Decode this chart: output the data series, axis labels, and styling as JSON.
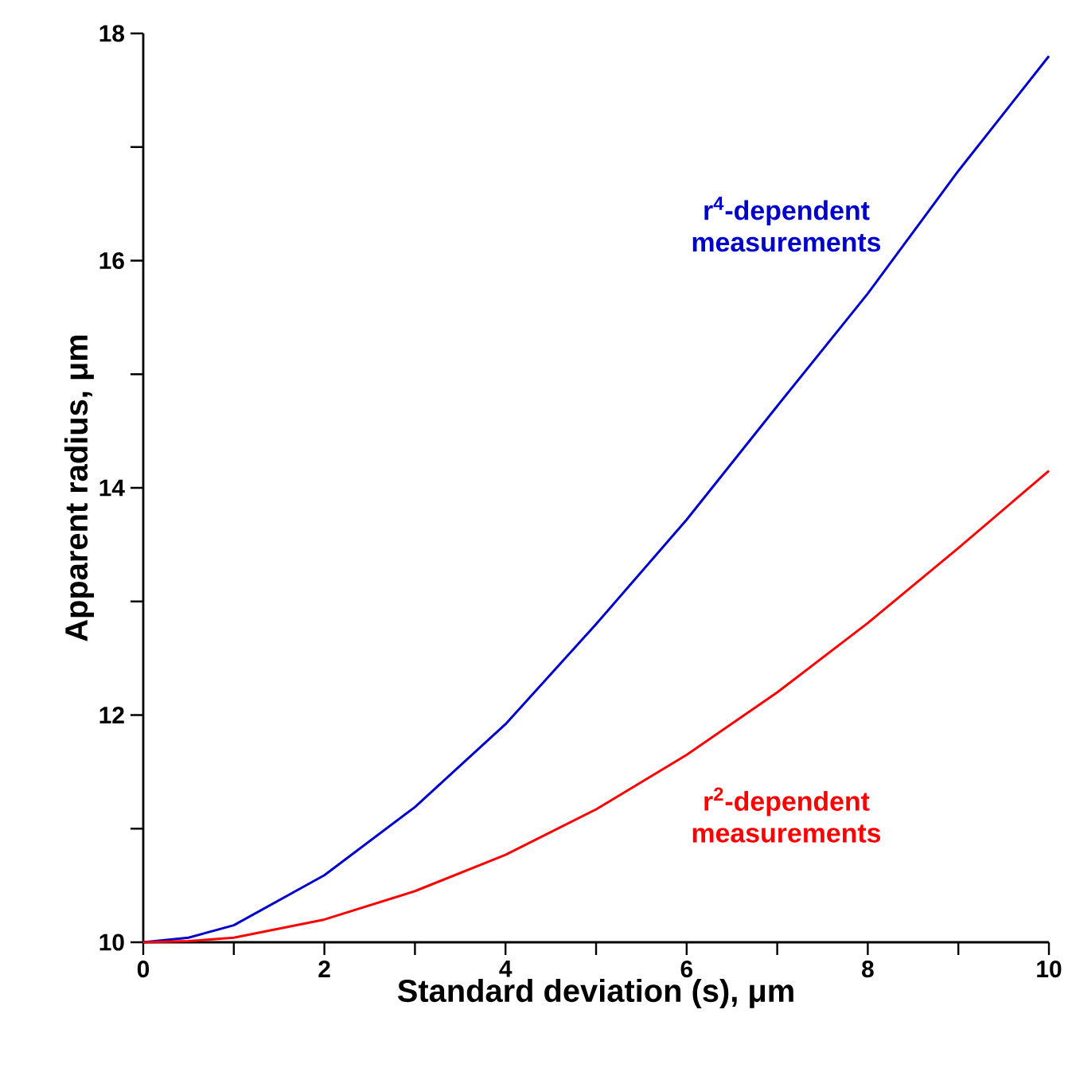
{
  "chart_data": {
    "type": "line",
    "xlabel": "Standard deviation (s), μm",
    "ylabel": "Apparent radius, μm",
    "x": [
      0,
      0.5,
      1,
      2,
      3,
      4,
      5,
      6,
      7,
      8,
      9,
      10
    ],
    "series": [
      {
        "color": "#0000cc",
        "values": [
          10,
          10.04,
          10.15,
          10.59,
          11.19,
          11.92,
          12.8,
          13.72,
          14.72,
          15.71,
          16.79,
          17.8
        ]
      },
      {
        "color": "#ff0000",
        "values": [
          10,
          10.01,
          10.04,
          10.2,
          10.45,
          10.77,
          11.17,
          11.65,
          12.2,
          12.81,
          13.47,
          14.15
        ]
      }
    ],
    "annotations": [
      "r$^{4}$-dependent measurements",
      "r$^{2}$-dependent measurements"
    ],
    "xlim": [
      0,
      10
    ],
    "ylim": [
      10,
      18
    ],
    "xticks": [
      0,
      {
        "value": 1,
        "label": null
      },
      2,
      {
        "value": 3,
        "label": null
      },
      4,
      {
        "value": 5,
        "label": null
      },
      6,
      {
        "value": 7,
        "label": null
      },
      8,
      {
        "value": 9,
        "label": null
      },
      10
    ],
    "yticks": [
      10,
      {
        "value": 11,
        "label": null
      },
      12,
      {
        "value": 13,
        "label": null
      },
      14,
      {
        "value": 15,
        "label": null
      },
      16,
      {
        "value": 17,
        "label": null
      },
      18
    ],
    "grid": false,
    "legend": false,
    "marker": "none",
    "line_style": "solid"
  }
}
